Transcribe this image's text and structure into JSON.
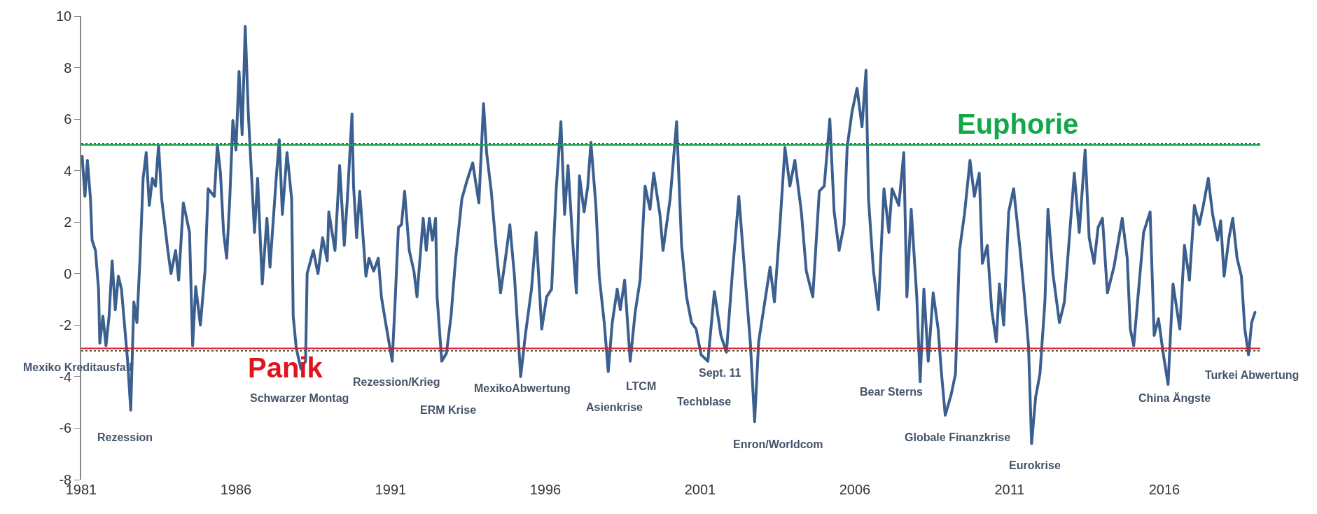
{
  "chart_data": {
    "type": "line",
    "xlim": [
      1981,
      2019.1
    ],
    "xticks": [
      1981,
      1986,
      1991,
      1996,
      2001,
      2006,
      2011,
      2016
    ],
    "ylim": [
      -8,
      10
    ],
    "yticks": [
      -8,
      -6,
      -4,
      -2,
      0,
      2,
      4,
      6,
      8,
      10
    ],
    "series": [
      {
        "color": "#3b5f8e",
        "x": [
          1981.03,
          1981.12,
          1981.2,
          1981.3,
          1981.35,
          1981.46,
          1981.56,
          1981.6,
          1981.7,
          1981.8,
          1981.9,
          1982.0,
          1982.1,
          1982.2,
          1982.3,
          1982.5,
          1982.6,
          1982.7,
          1982.8,
          1982.9,
          1983.0,
          1983.1,
          1983.2,
          1983.3,
          1983.4,
          1983.5,
          1983.6,
          1983.8,
          1983.9,
          1984.05,
          1984.15,
          1984.3,
          1984.5,
          1984.6,
          1984.7,
          1984.85,
          1985.0,
          1985.1,
          1985.3,
          1985.4,
          1985.5,
          1985.6,
          1985.7,
          1985.8,
          1985.9,
          1986.0,
          1986.1,
          1986.2,
          1986.3,
          1986.4,
          1986.5,
          1986.6,
          1986.7,
          1986.85,
          1987.0,
          1987.1,
          1987.3,
          1987.4,
          1987.5,
          1987.65,
          1987.8,
          1987.85,
          1987.95,
          1988.1,
          1988.25,
          1988.3,
          1988.5,
          1988.65,
          1988.8,
          1988.95,
          1989.0,
          1989.2,
          1989.35,
          1989.5,
          1989.6,
          1989.75,
          1989.8,
          1989.9,
          1990.0,
          1990.2,
          1990.3,
          1990.45,
          1990.6,
          1990.7,
          1990.85,
          1991.05,
          1991.15,
          1991.25,
          1991.35,
          1991.45,
          1991.6,
          1991.75,
          1991.85,
          1992.05,
          1992.15,
          1992.25,
          1992.35,
          1992.45,
          1992.5,
          1992.65,
          1992.8,
          1992.95,
          1993.1,
          1993.3,
          1993.45,
          1993.65,
          1993.85,
          1994.0,
          1994.1,
          1994.25,
          1994.4,
          1994.55,
          1994.7,
          1994.85,
          1995.0,
          1995.2,
          1995.35,
          1995.55,
          1995.7,
          1995.88,
          1996.04,
          1996.2,
          1996.35,
          1996.5,
          1996.62,
          1996.73,
          1996.9,
          1997.0,
          1997.1,
          1997.25,
          1997.37,
          1997.47,
          1997.63,
          1997.74,
          1997.9,
          1998.03,
          1998.16,
          1998.32,
          1998.42,
          1998.56,
          1998.74,
          1998.9,
          1999.06,
          1999.22,
          1999.38,
          1999.5,
          1999.7,
          1999.8,
          2000.03,
          2000.24,
          2000.4,
          2000.56,
          2000.72,
          2000.87,
          2001.03,
          2001.25,
          2001.46,
          2001.67,
          2001.85,
          2002.04,
          2002.25,
          2002.46,
          2002.62,
          2002.76,
          2002.89,
          2003.05,
          2003.26,
          2003.4,
          2003.58,
          2003.74,
          2003.9,
          2004.06,
          2004.27,
          2004.43,
          2004.64,
          2004.85,
          2005.01,
          2005.19,
          2005.33,
          2005.49,
          2005.65,
          2005.75,
          2005.91,
          2006.07,
          2006.23,
          2006.36,
          2006.44,
          2006.6,
          2006.76,
          2006.94,
          2007.1,
          2007.2,
          2007.42,
          2007.58,
          2007.68,
          2007.82,
          2008.0,
          2008.11,
          2008.23,
          2008.37,
          2008.53,
          2008.69,
          2008.8,
          2008.92,
          2009.11,
          2009.25,
          2009.38,
          2009.54,
          2009.72,
          2009.86,
          2010.02,
          2010.12,
          2010.28,
          2010.42,
          2010.57,
          2010.67,
          2010.81,
          2010.97,
          2011.13,
          2011.34,
          2011.48,
          2011.61,
          2011.71,
          2011.84,
          2011.98,
          2012.14,
          2012.24,
          2012.4,
          2012.61,
          2012.77,
          2012.93,
          2013.09,
          2013.25,
          2013.44,
          2013.57,
          2013.73,
          2013.86,
          2014.0,
          2014.16,
          2014.37,
          2014.64,
          2014.8,
          2014.9,
          2015.01,
          2015.17,
          2015.33,
          2015.54,
          2015.67,
          2015.81,
          2015.97,
          2016.12,
          2016.28,
          2016.5,
          2016.65,
          2016.81,
          2016.97,
          2017.13,
          2017.26,
          2017.42,
          2017.56,
          2017.72,
          2017.82,
          2017.93,
          2018.09,
          2018.21,
          2018.35,
          2018.49,
          2018.6,
          2018.72,
          2018.82,
          2018.93
        ],
        "values": [
          4.56,
          3.0,
          4.4,
          2.9,
          1.3,
          0.9,
          -0.6,
          -2.7,
          -1.65,
          -2.8,
          -1.65,
          0.5,
          -1.4,
          -0.1,
          -0.6,
          -3.4,
          -5.3,
          -1.1,
          -1.9,
          0.6,
          3.7,
          4.7,
          2.65,
          3.7,
          3.4,
          5.0,
          2.9,
          0.9,
          0.0,
          0.9,
          -0.25,
          2.75,
          1.6,
          -2.8,
          -0.5,
          -2.0,
          0.1,
          3.3,
          3.0,
          5.0,
          3.9,
          1.6,
          0.6,
          2.9,
          5.95,
          4.8,
          7.85,
          5.4,
          9.6,
          6.2,
          3.9,
          1.6,
          3.7,
          -0.4,
          2.15,
          0.25,
          3.7,
          5.2,
          2.3,
          4.7,
          2.9,
          -1.65,
          -2.9,
          -3.7,
          -3.4,
          0.0,
          0.9,
          0.0,
          1.4,
          0.5,
          2.4,
          0.9,
          4.2,
          1.1,
          2.9,
          6.2,
          3.4,
          1.4,
          3.2,
          -0.1,
          0.6,
          0.1,
          0.6,
          -0.9,
          -2.0,
          -3.4,
          -0.9,
          1.8,
          1.9,
          3.2,
          0.9,
          0.1,
          -0.9,
          2.15,
          0.9,
          2.15,
          1.3,
          2.15,
          -0.9,
          -3.4,
          -3.1,
          -1.65,
          0.6,
          2.9,
          3.55,
          4.3,
          2.75,
          6.6,
          4.7,
          3.2,
          1.1,
          -0.75,
          0.5,
          1.9,
          -0.1,
          -4.0,
          -2.4,
          -0.6,
          1.6,
          -2.15,
          -0.9,
          -0.6,
          3.3,
          5.9,
          2.3,
          4.2,
          0.9,
          -0.75,
          3.8,
          2.4,
          3.4,
          5.1,
          2.65,
          -0.1,
          -1.9,
          -3.8,
          -1.9,
          -0.6,
          -1.4,
          -0.25,
          -3.4,
          -1.5,
          -0.25,
          3.4,
          2.5,
          3.9,
          2.3,
          0.9,
          2.9,
          5.9,
          1.1,
          -0.9,
          -1.9,
          -2.15,
          -3.15,
          -3.4,
          -0.7,
          -2.4,
          -3.05,
          0.0,
          3.0,
          -0.25,
          -2.65,
          -5.75,
          -2.65,
          -1.4,
          0.25,
          -1.1,
          1.9,
          4.9,
          3.4,
          4.4,
          2.4,
          0.1,
          -0.9,
          3.2,
          3.4,
          6.0,
          2.4,
          0.9,
          1.9,
          4.9,
          6.3,
          7.2,
          5.7,
          7.9,
          2.9,
          0.1,
          -1.4,
          3.3,
          1.6,
          3.3,
          2.65,
          4.7,
          -0.9,
          2.5,
          -0.9,
          -4.2,
          -0.6,
          -3.4,
          -0.75,
          -2.15,
          -3.9,
          -5.5,
          -4.7,
          -3.9,
          0.9,
          2.3,
          4.4,
          3.0,
          3.9,
          0.4,
          1.1,
          -1.4,
          -2.65,
          -0.4,
          -2.0,
          2.4,
          3.3,
          0.9,
          -0.9,
          -2.8,
          -6.6,
          -4.8,
          -3.9,
          -1.1,
          2.5,
          0.0,
          -1.9,
          -1.1,
          1.4,
          3.9,
          1.6,
          4.8,
          1.4,
          0.4,
          1.8,
          2.15,
          -0.75,
          0.25,
          2.15,
          0.6,
          -2.15,
          -2.8,
          -0.6,
          1.6,
          2.4,
          -2.4,
          -1.75,
          -3.15,
          -4.3,
          -0.4,
          -2.15,
          1.1,
          -0.25,
          2.65,
          1.9,
          2.65,
          3.7,
          2.3,
          1.3,
          2.05,
          -0.1,
          1.4,
          2.15,
          0.6,
          -0.1,
          -2.15,
          -3.15,
          -1.9,
          -1.5
        ]
      }
    ],
    "ref_lines": [
      {
        "axis": "y",
        "value": 5,
        "label": "Euphorie",
        "color": "#12a84a"
      },
      {
        "axis": "y",
        "value": -2.9,
        "label": "Panik",
        "color": "#e0141e"
      },
      {
        "axis": "y",
        "value": 5.05,
        "color": "#555555",
        "line_style": "dotted"
      },
      {
        "axis": "y",
        "value": -3.0,
        "color": "#555555",
        "line_style": "dotted"
      }
    ],
    "annotations": [
      "Mexiko Kreditausfall",
      "Rezession",
      "Schwarzer Montag",
      "Rezession/Krieg",
      "ERM Krise",
      "MexikoAbwertung",
      "LTCM",
      "Asienkrise",
      "Sept. 11",
      "Techblase",
      "Enron/Worldcom",
      "Bear Sterns",
      "Globale Finanzkrise",
      "Eurokrise",
      "China Ängste",
      "Turkei Abwertung"
    ]
  }
}
